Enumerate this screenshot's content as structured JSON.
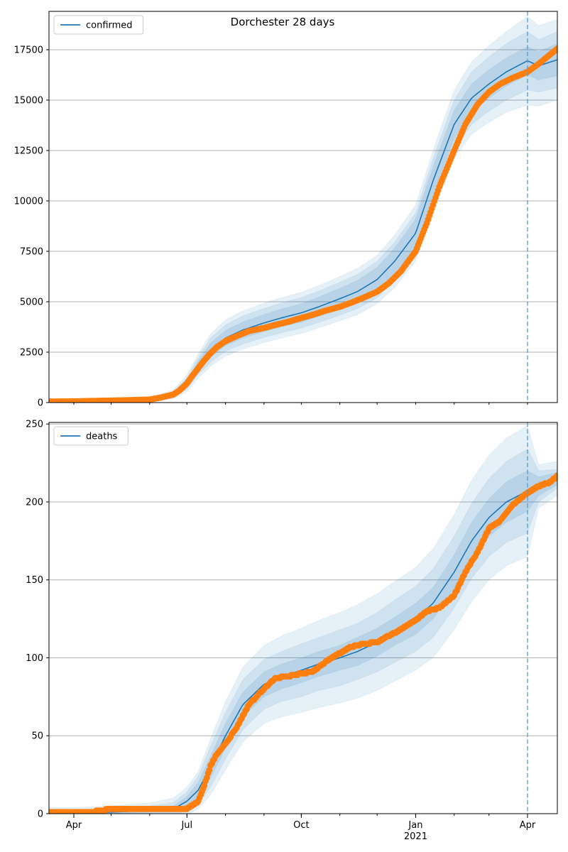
{
  "figure": {
    "title": "Dorchester 28 days"
  },
  "chart_data": [
    {
      "type": "line",
      "title": "Dorchester 28 days",
      "legend": {
        "placement": "top-left",
        "entries": [
          "confirmed"
        ]
      },
      "grid": {
        "y": true,
        "x": false
      },
      "xlim": [
        "2020-03-12",
        "2021-04-25"
      ],
      "ylim": [
        0,
        19400
      ],
      "yticks": [
        0,
        2500,
        5000,
        7500,
        10000,
        12500,
        15000,
        17500
      ],
      "ytick_labels": [
        "0",
        "2500",
        "5000",
        "7500",
        "10000",
        "12500",
        "15000",
        "17500"
      ],
      "xticks": [],
      "xtick_labels": [],
      "vline": {
        "x": "2021-04-01",
        "style": "dashed"
      },
      "colors": {
        "line": "#1f77b4",
        "points": "#ff7f0e",
        "band": "#1f77b4"
      },
      "series": [
        {
          "name": "confirmed",
          "kind": "model",
          "x": [
            "2020-03-12",
            "2020-04-01",
            "2020-05-01",
            "2020-06-01",
            "2020-06-20",
            "2020-07-01",
            "2020-07-10",
            "2020-07-20",
            "2020-08-01",
            "2020-08-15",
            "2020-09-01",
            "2020-09-15",
            "2020-10-01",
            "2020-10-15",
            "2020-11-01",
            "2020-11-15",
            "2020-12-01",
            "2020-12-15",
            "2021-01-01",
            "2021-01-15",
            "2021-02-01",
            "2021-02-15",
            "2021-03-01",
            "2021-03-15",
            "2021-04-01",
            "2021-04-10",
            "2021-04-25"
          ],
          "y": [
            50,
            70,
            100,
            150,
            400,
            950,
            1800,
            2600,
            3200,
            3600,
            3950,
            4200,
            4450,
            4750,
            5150,
            5500,
            6100,
            7000,
            8400,
            11000,
            13800,
            15100,
            15800,
            16400,
            16950,
            16700,
            17000
          ],
          "band_inner_half_width": [
            20,
            20,
            30,
            40,
            80,
            150,
            250,
            350,
            380,
            400,
            420,
            440,
            460,
            480,
            520,
            550,
            600,
            650,
            700,
            700,
            700,
            700,
            700,
            700,
            700,
            700,
            800
          ],
          "band_mid_half_width": [
            40,
            40,
            60,
            80,
            150,
            280,
            420,
            600,
            650,
            700,
            720,
            740,
            760,
            780,
            820,
            850,
            900,
            950,
            1000,
            1100,
            1200,
            1300,
            1350,
            1400,
            1450,
            1300,
            1400
          ],
          "band_outer_half_width": [
            60,
            60,
            90,
            120,
            220,
            420,
            600,
            800,
            900,
            950,
            980,
            1000,
            1020,
            1050,
            1100,
            1150,
            1200,
            1300,
            1400,
            1500,
            1700,
            1800,
            1900,
            2000,
            2200,
            2000,
            2000
          ]
        },
        {
          "name": "",
          "kind": "observed",
          "x": [
            "2020-03-12",
            "2020-04-01",
            "2020-04-15",
            "2020-05-01",
            "2020-05-15",
            "2020-06-01",
            "2020-06-10",
            "2020-06-20",
            "2020-06-25",
            "2020-07-01",
            "2020-07-05",
            "2020-07-10",
            "2020-07-15",
            "2020-07-20",
            "2020-07-25",
            "2020-08-01",
            "2020-08-10",
            "2020-08-20",
            "2020-09-01",
            "2020-09-10",
            "2020-09-20",
            "2020-10-01",
            "2020-10-10",
            "2020-10-20",
            "2020-11-01",
            "2020-11-10",
            "2020-11-20",
            "2020-12-01",
            "2020-12-10",
            "2020-12-20",
            "2021-01-01",
            "2021-01-10",
            "2021-01-20",
            "2021-02-01",
            "2021-02-10",
            "2021-02-20",
            "2021-03-01",
            "2021-03-10",
            "2021-03-20",
            "2021-04-01",
            "2021-04-10",
            "2021-04-20",
            "2021-04-25"
          ],
          "y": [
            50,
            60,
            80,
            100,
            120,
            150,
            250,
            400,
            600,
            950,
            1300,
            1700,
            2100,
            2450,
            2750,
            3050,
            3300,
            3550,
            3700,
            3850,
            4000,
            4200,
            4350,
            4550,
            4750,
            4950,
            5200,
            5500,
            5900,
            6500,
            7500,
            8900,
            10700,
            12500,
            13800,
            14800,
            15400,
            15800,
            16100,
            16400,
            16800,
            17300,
            17550
          ]
        }
      ]
    },
    {
      "type": "line",
      "legend": {
        "placement": "top-left",
        "entries": [
          "deaths"
        ]
      },
      "grid": {
        "y": true,
        "x": false
      },
      "xlim": [
        "2020-03-12",
        "2021-04-25"
      ],
      "ylim": [
        0,
        251
      ],
      "yticks": [
        0,
        50,
        100,
        150,
        200,
        250
      ],
      "ytick_labels": [
        "0",
        "50",
        "100",
        "150",
        "200",
        "250"
      ],
      "xticks": [
        "2020-04-01",
        "2020-07-01",
        "2020-10-01",
        "2021-01-01",
        "2021-04-01"
      ],
      "xtick_labels": [
        "Apr",
        "Jul",
        "Oct",
        "Jan\n2021",
        "Apr"
      ],
      "vline": {
        "x": "2021-04-01",
        "style": "dashed"
      },
      "colors": {
        "line": "#1f77b4",
        "points": "#ff7f0e",
        "band": "#1f77b4"
      },
      "series": [
        {
          "name": "deaths",
          "kind": "model",
          "x": [
            "2020-03-12",
            "2020-04-01",
            "2020-05-01",
            "2020-06-01",
            "2020-06-20",
            "2020-07-01",
            "2020-07-10",
            "2020-07-20",
            "2020-08-01",
            "2020-08-15",
            "2020-09-01",
            "2020-09-15",
            "2020-10-01",
            "2020-10-15",
            "2020-11-01",
            "2020-11-15",
            "2020-12-01",
            "2020-12-15",
            "2021-01-01",
            "2021-01-15",
            "2021-02-01",
            "2021-02-15",
            "2021-03-01",
            "2021-03-15",
            "2021-04-01",
            "2021-04-10",
            "2021-04-25"
          ],
          "y": [
            0,
            0,
            1,
            2,
            3,
            8,
            15,
            30,
            50,
            70,
            83,
            88,
            92,
            96,
            100,
            104,
            110,
            117,
            125,
            135,
            155,
            175,
            190,
            200,
            207,
            210,
            215
          ],
          "band_inner_half_width": [
            1,
            1,
            1,
            1,
            2,
            3,
            5,
            7,
            8,
            8,
            8,
            8,
            8,
            8,
            8,
            9,
            9,
            9,
            10,
            10,
            11,
            12,
            12,
            13,
            13,
            6,
            4
          ],
          "band_mid_half_width": [
            2,
            2,
            2,
            3,
            4,
            6,
            9,
            13,
            15,
            16,
            16,
            16,
            17,
            17,
            18,
            18,
            19,
            20,
            21,
            22,
            23,
            24,
            25,
            26,
            27,
            10,
            6
          ],
          "band_outer_half_width": [
            4,
            4,
            4,
            5,
            7,
            9,
            12,
            18,
            22,
            24,
            25,
            26,
            27,
            28,
            29,
            30,
            31,
            32,
            33,
            35,
            37,
            39,
            40,
            41,
            42,
            14,
            11
          ]
        },
        {
          "name": "",
          "kind": "observed",
          "x": [
            "2020-03-12",
            "2020-04-15",
            "2020-05-01",
            "2020-06-01",
            "2020-07-01",
            "2020-07-10",
            "2020-07-15",
            "2020-07-20",
            "2020-07-25",
            "2020-08-01",
            "2020-08-10",
            "2020-08-20",
            "2020-09-01",
            "2020-09-10",
            "2020-09-20",
            "2020-10-01",
            "2020-10-10",
            "2020-10-20",
            "2020-11-01",
            "2020-11-10",
            "2020-11-20",
            "2020-12-01",
            "2020-12-10",
            "2020-12-20",
            "2021-01-01",
            "2021-01-10",
            "2021-01-20",
            "2021-02-01",
            "2021-02-10",
            "2021-02-20",
            "2021-03-01",
            "2021-03-10",
            "2021-03-20",
            "2021-04-01",
            "2021-04-10",
            "2021-04-20",
            "2021-04-25"
          ],
          "y": [
            1,
            1,
            3,
            3,
            3,
            8,
            18,
            31,
            38,
            45,
            55,
            70,
            80,
            87,
            88,
            90,
            91,
            97,
            103,
            107,
            109,
            110,
            114,
            118,
            124,
            130,
            132,
            140,
            155,
            168,
            183,
            188,
            198,
            206,
            210,
            213,
            217
          ]
        }
      ]
    }
  ]
}
